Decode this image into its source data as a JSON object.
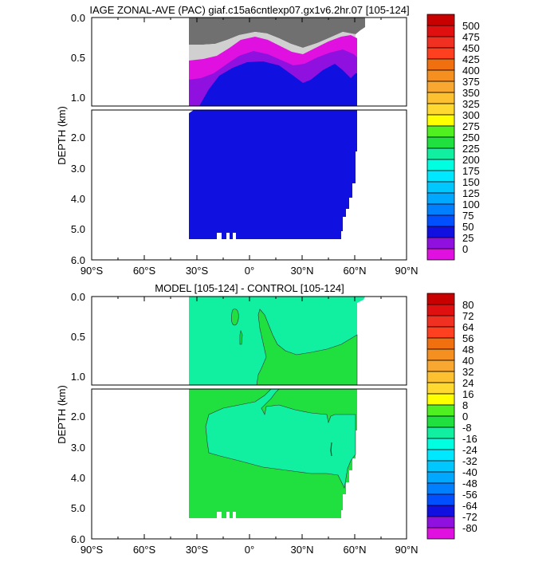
{
  "chart_data": [
    {
      "type": "heatmap",
      "title": "IAGE ZONAL-AVE (PAC) giaf.c15a6cntlexp07.gx1v6.2hr.07 [105-124]",
      "ylabel": "DEPTH (km)",
      "xlabel": "",
      "x_ticks": [
        "90°S",
        "60°S",
        "30°S",
        "0°",
        "30°N",
        "60°N",
        "90°N"
      ],
      "x_range": [
        -90,
        90
      ],
      "y_upper_range": [
        0.0,
        1.1
      ],
      "y_lower_range": [
        1.1,
        6.0
      ],
      "y_ticks_upper": [
        "0.0",
        "0.5",
        "1.0"
      ],
      "y_ticks_lower": [
        "2.0",
        "3.0",
        "4.0",
        "5.0",
        "6.0"
      ],
      "colorbar": {
        "labels": [
          "500",
          "475",
          "450",
          "425",
          "400",
          "375",
          "350",
          "325",
          "300",
          "275",
          "250",
          "225",
          "200",
          "175",
          "150",
          "125",
          "100",
          "75",
          "50",
          "25",
          "0"
        ],
        "colors": [
          "#c80000",
          "#e01010",
          "#f03020",
          "#ff4020",
          "#f07010",
          "#f59020",
          "#f8a830",
          "#fcc030",
          "#ffd830",
          "#ffff00",
          "#50f020",
          "#20e040",
          "#10f0a0",
          "#00ffe0",
          "#00e8ff",
          "#00c8ff",
          "#00a8ff",
          "#0080ff",
          "#0050ff",
          "#1010e0",
          "#9010e0",
          "#e010e0",
          "#d0d0d0",
          "#707070"
        ]
      },
      "fields": {
        "ocean_lon": [
          -35,
          62
        ],
        "gray_top_depth": [
          [
            -35,
            0.06
          ],
          [
            -20,
            0.12
          ],
          [
            -5,
            0.25
          ],
          [
            10,
            0.24
          ],
          [
            25,
            0.3
          ],
          [
            40,
            0.18
          ],
          [
            55,
            0.05
          ]
        ],
        "purple_top_depth": [
          [
            -35,
            0.6
          ],
          [
            -20,
            0.55
          ],
          [
            -5,
            0.45
          ],
          [
            10,
            0.4
          ],
          [
            25,
            0.5
          ],
          [
            40,
            0.45
          ],
          [
            55,
            0.55
          ]
        ],
        "blue_top_depth": [
          [
            -35,
            1.1
          ],
          [
            -20,
            0.8
          ],
          [
            -5,
            0.6
          ],
          [
            10,
            0.55
          ],
          [
            25,
            0.7
          ],
          [
            40,
            0.65
          ],
          [
            55,
            0.75
          ]
        ],
        "bottom_depth": [
          [
            -35,
            5.35
          ],
          [
            50,
            5.35
          ],
          [
            55,
            4.6
          ],
          [
            62,
            1.1
          ]
        ]
      }
    },
    {
      "type": "heatmap",
      "title": "MODEL [105-124] - CONTROL [105-124]",
      "ylabel": "DEPTH (km)",
      "xlabel": "",
      "x_ticks": [
        "90°S",
        "60°S",
        "30°S",
        "0°",
        "30°N",
        "60°N",
        "90°N"
      ],
      "x_range": [
        -90,
        90
      ],
      "y_upper_range": [
        0.0,
        1.1
      ],
      "y_lower_range": [
        1.1,
        6.0
      ],
      "y_ticks_upper": [
        "0.0",
        "0.5",
        "1.0"
      ],
      "y_ticks_lower": [
        "2.0",
        "3.0",
        "4.0",
        "5.0",
        "6.0"
      ],
      "colorbar": {
        "labels": [
          "80",
          "72",
          "64",
          "56",
          "48",
          "40",
          "32",
          "24",
          "16",
          "8",
          "0",
          "-8",
          "-16",
          "-24",
          "-32",
          "-40",
          "-48",
          "-56",
          "-64",
          "-72",
          "-80"
        ],
        "colors": [
          "#c80000",
          "#e01010",
          "#f03020",
          "#ff4020",
          "#f07010",
          "#f59020",
          "#f8a830",
          "#fcc030",
          "#ffd830",
          "#ffff00",
          "#50f020",
          "#20e040",
          "#10f0a0",
          "#00ffe0",
          "#00e8ff",
          "#00c8ff",
          "#00a8ff",
          "#0080ff",
          "#0050ff",
          "#1010e0",
          "#9010e0",
          "#e010e0",
          "#d0d0d0",
          "#707070"
        ]
      },
      "fields": {
        "ocean_lon": [
          -35,
          62
        ],
        "base_color": "#10f0a0",
        "green_region": "#20e040"
      }
    }
  ]
}
